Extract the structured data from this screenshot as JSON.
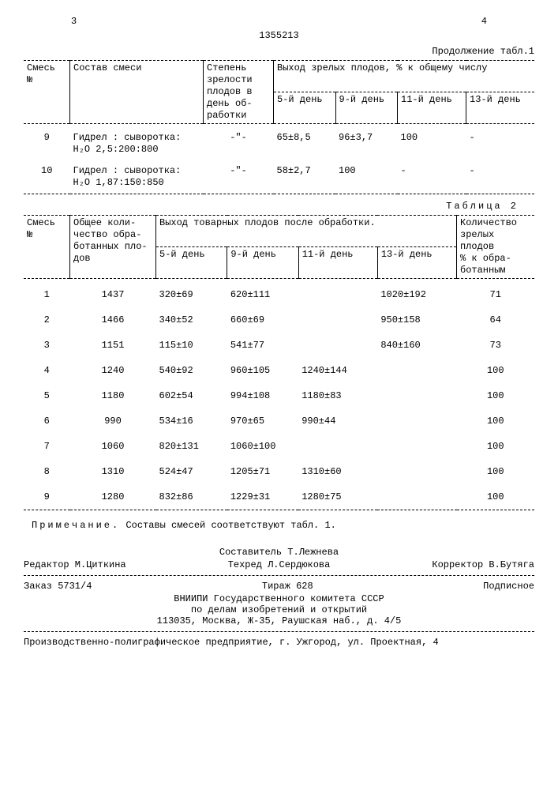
{
  "header": {
    "page_left": "3",
    "page_right": "4",
    "doc_number": "1355213",
    "continuation": "Продолжение табл.1"
  },
  "table1": {
    "head": {
      "mix_no": "Смесь\n№",
      "composition": "Состав смеси",
      "maturity": "Степень\nзрелости\nплодов в\nдень об-\nработки",
      "yield_header": "Выход зрелых плодов, % к общему числу",
      "day5": "5-й день",
      "day9": "9-й день",
      "day11": "11-й день",
      "day13": "13-й день"
    },
    "rows": [
      {
        "no": "9",
        "comp": "Гидрел : сыворотка:\nН₂О  2,5:200:800",
        "mat": "-\"-",
        "d5": "65±8,5",
        "d9": "96±3,7",
        "d11": "100",
        "d13": "-"
      },
      {
        "no": "10",
        "comp": "Гидрел : сыворотка:\nН₂О  1,87:150:850",
        "mat": "-\"-",
        "d5": "58±2,7",
        "d9": "100",
        "d11": "-",
        "d13": "-"
      }
    ]
  },
  "table2": {
    "label": "Таблица 2",
    "head": {
      "mix_no": "Смесь\n№",
      "total": "Общее коли-\nчество обра-\nботанных пло-\nдов",
      "yield_header": "Выход товарных плодов после обработки.",
      "day5": "5-й день",
      "day9": "9-й день",
      "day11": "11-й день",
      "day13": "13-й день",
      "ripe_pct": "Количество\nзрелых\nплодов\n% к обра-\nботанным"
    },
    "rows": [
      {
        "no": "1",
        "total": "1437",
        "d5": "320±69",
        "d9": "620±111",
        "d11": "",
        "d13": "1020±192",
        "pct": "71"
      },
      {
        "no": "2",
        "total": "1466",
        "d5": "340±52",
        "d9": "660±69",
        "d11": "",
        "d13": "950±158",
        "pct": "64"
      },
      {
        "no": "3",
        "total": "1151",
        "d5": "115±10",
        "d9": "541±77",
        "d11": "",
        "d13": "840±160",
        "pct": "73"
      },
      {
        "no": "4",
        "total": "1240",
        "d5": "540±92",
        "d9": "960±105",
        "d11": "1240±144",
        "d13": "",
        "pct": "100"
      },
      {
        "no": "5",
        "total": "1180",
        "d5": "602±54",
        "d9": "994±108",
        "d11": "1180±83",
        "d13": "",
        "pct": "100"
      },
      {
        "no": "6",
        "total": "990",
        "d5": "534±16",
        "d9": "970±65",
        "d11": "990±44",
        "d13": "",
        "pct": "100"
      },
      {
        "no": "7",
        "total": "1060",
        "d5": "820±131",
        "d9": "1060±100",
        "d11": "",
        "d13": "",
        "pct": "100"
      },
      {
        "no": "8",
        "total": "1310",
        "d5": "524±47",
        "d9": "1205±71",
        "d11": "1310±60",
        "d13": "",
        "pct": "100"
      },
      {
        "no": "9",
        "total": "1280",
        "d5": "832±86",
        "d9": "1229±31",
        "d11": "1280±75",
        "d13": "",
        "pct": "100"
      }
    ]
  },
  "note": {
    "label": "Примечание.",
    "text": "Составы смесей соответствуют табл. 1."
  },
  "footer": {
    "compiler": "Составитель Т.Лежнева",
    "editor": "Редактор М.Циткина",
    "techred": "Техред Л.Сердюкова",
    "corrector": "Корректор В.Бутяга",
    "order": "Заказ 5731/4",
    "print_run": "Тираж  628",
    "subscription": "Подписное",
    "org1": "ВНИИПИ Государственного комитета СССР",
    "org2": "по делам изобретений и открытий",
    "addr": "113035, Москва, Ж-35, Раушская наб., д. 4/5",
    "print_house": "Производственно-полиграфическое предприятие, г. Ужгород, ул. Проектная, 4"
  }
}
